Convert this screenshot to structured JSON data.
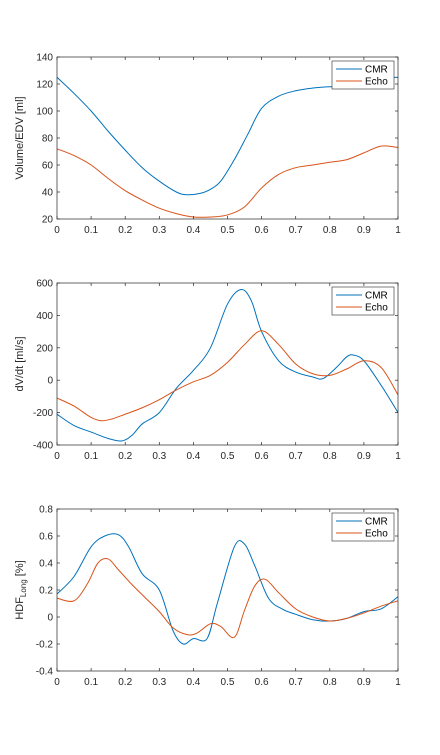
{
  "chart_data": [
    {
      "type": "line",
      "ylabel": "Volume/EDV [ml]",
      "xlim": [
        0,
        1
      ],
      "ylim": [
        20,
        140
      ],
      "xticks": [
        0,
        0.1,
        0.2,
        0.3,
        0.4,
        0.5,
        0.6,
        0.7,
        0.8,
        0.9,
        1
      ],
      "xtick_labels": [
        "0",
        "0.1",
        "0.2",
        "0.3",
        "0.4",
        "0.5",
        "0.6",
        "0.7",
        "0.8",
        "0.9",
        "1"
      ],
      "yticks": [
        20,
        40,
        60,
        80,
        100,
        120,
        140
      ],
      "ytick_labels": [
        "20",
        "40",
        "60",
        "80",
        "100",
        "120",
        "140"
      ],
      "legend": "top-right",
      "grid": false,
      "series": [
        {
          "name": "CMR",
          "color": "#0072BD",
          "x": [
            0,
            0.05,
            0.1,
            0.15,
            0.2,
            0.25,
            0.3,
            0.35,
            0.38,
            0.42,
            0.45,
            0.48,
            0.52,
            0.56,
            0.6,
            0.65,
            0.7,
            0.75,
            0.8,
            0.85,
            0.9,
            0.95,
            1
          ],
          "y": [
            125,
            113,
            100,
            85,
            71,
            58,
            48,
            40,
            38,
            39,
            42,
            48,
            64,
            83,
            102,
            111,
            115,
            117,
            118,
            117,
            118,
            124,
            125
          ]
        },
        {
          "name": "Echo",
          "color": "#D95319",
          "x": [
            0,
            0.05,
            0.1,
            0.15,
            0.2,
            0.25,
            0.3,
            0.35,
            0.4,
            0.45,
            0.5,
            0.55,
            0.6,
            0.65,
            0.7,
            0.75,
            0.8,
            0.85,
            0.9,
            0.95,
            1
          ],
          "y": [
            72,
            67,
            60,
            50,
            41,
            34,
            28,
            24,
            21.5,
            21.5,
            23,
            29,
            43,
            53,
            58,
            60,
            62,
            64,
            69,
            74,
            73
          ]
        }
      ]
    },
    {
      "type": "line",
      "ylabel": "dV/dt [ml/s]",
      "xlim": [
        0,
        1
      ],
      "ylim": [
        -400,
        600
      ],
      "xticks": [
        0,
        0.1,
        0.2,
        0.3,
        0.4,
        0.5,
        0.6,
        0.7,
        0.8,
        0.9,
        1
      ],
      "xtick_labels": [
        "0",
        "0.1",
        "0.2",
        "0.3",
        "0.4",
        "0.5",
        "0.6",
        "0.7",
        "0.8",
        "0.9",
        "1"
      ],
      "yticks": [
        -400,
        -200,
        0,
        200,
        400,
        600
      ],
      "ytick_labels": [
        "-400",
        "-200",
        "0",
        "200",
        "400",
        "600"
      ],
      "legend": "top-right",
      "grid": false,
      "series": [
        {
          "name": "CMR",
          "color": "#0072BD",
          "x": [
            0,
            0.05,
            0.1,
            0.15,
            0.19,
            0.22,
            0.25,
            0.3,
            0.35,
            0.4,
            0.45,
            0.5,
            0.54,
            0.57,
            0.6,
            0.65,
            0.7,
            0.75,
            0.78,
            0.82,
            0.85,
            0.87,
            0.9,
            0.95,
            1
          ],
          "y": [
            -210,
            -280,
            -320,
            -360,
            -375,
            -340,
            -270,
            -200,
            -50,
            60,
            200,
            470,
            560,
            490,
            300,
            120,
            50,
            20,
            10,
            80,
            145,
            155,
            120,
            -30,
            -200
          ]
        },
        {
          "name": "Echo",
          "color": "#D95319",
          "x": [
            0,
            0.05,
            0.1,
            0.13,
            0.16,
            0.2,
            0.25,
            0.3,
            0.35,
            0.4,
            0.45,
            0.5,
            0.55,
            0.6,
            0.65,
            0.7,
            0.75,
            0.8,
            0.85,
            0.9,
            0.95,
            1
          ],
          "y": [
            -110,
            -160,
            -230,
            -250,
            -240,
            -210,
            -170,
            -120,
            -60,
            -10,
            30,
            110,
            220,
            305,
            220,
            100,
            40,
            30,
            70,
            120,
            80,
            -90
          ]
        }
      ]
    },
    {
      "type": "line",
      "ylabel": "HDF",
      "ylabel_sub": "Long",
      "ylabel_unit": "[%]",
      "xlim": [
        0,
        1
      ],
      "ylim": [
        -0.4,
        0.8
      ],
      "xticks": [
        0,
        0.1,
        0.2,
        0.3,
        0.4,
        0.5,
        0.6,
        0.7,
        0.8,
        0.9,
        1
      ],
      "xtick_labels": [
        "0",
        "0.1",
        "0.2",
        "0.3",
        "0.4",
        "0.5",
        "0.6",
        "0.7",
        "0.8",
        "0.9",
        "1"
      ],
      "yticks": [
        -0.4,
        -0.2,
        0,
        0.2,
        0.4,
        0.6,
        0.8
      ],
      "ytick_labels": [
        "-0.4",
        "-0.2",
        "0",
        "0.2",
        "0.4",
        "0.6",
        "0.8"
      ],
      "legend": "top-right",
      "grid": false,
      "series": [
        {
          "name": "CMR",
          "color": "#0072BD",
          "x": [
            0,
            0.05,
            0.1,
            0.14,
            0.18,
            0.21,
            0.25,
            0.3,
            0.34,
            0.37,
            0.4,
            0.44,
            0.47,
            0.52,
            0.55,
            0.58,
            0.62,
            0.66,
            0.7,
            0.75,
            0.8,
            0.85,
            0.9,
            0.95,
            1
          ],
          "y": [
            0.17,
            0.3,
            0.52,
            0.6,
            0.61,
            0.52,
            0.32,
            0.2,
            -0.1,
            -0.2,
            -0.16,
            -0.16,
            0.1,
            0.52,
            0.54,
            0.38,
            0.14,
            0.06,
            0.02,
            -0.02,
            -0.03,
            -0.01,
            0.04,
            0.06,
            0.15
          ]
        },
        {
          "name": "Echo",
          "color": "#D95319",
          "x": [
            0,
            0.05,
            0.09,
            0.12,
            0.15,
            0.18,
            0.22,
            0.26,
            0.3,
            0.34,
            0.38,
            0.41,
            0.45,
            0.48,
            0.52,
            0.55,
            0.58,
            0.61,
            0.65,
            0.7,
            0.75,
            0.8,
            0.85,
            0.9,
            0.95,
            1
          ],
          "y": [
            0.14,
            0.12,
            0.25,
            0.4,
            0.43,
            0.35,
            0.24,
            0.14,
            0.04,
            -0.08,
            -0.13,
            -0.12,
            -0.05,
            -0.07,
            -0.15,
            0.05,
            0.23,
            0.28,
            0.18,
            0.06,
            0.0,
            -0.03,
            -0.01,
            0.03,
            0.08,
            0.12
          ]
        }
      ]
    }
  ]
}
